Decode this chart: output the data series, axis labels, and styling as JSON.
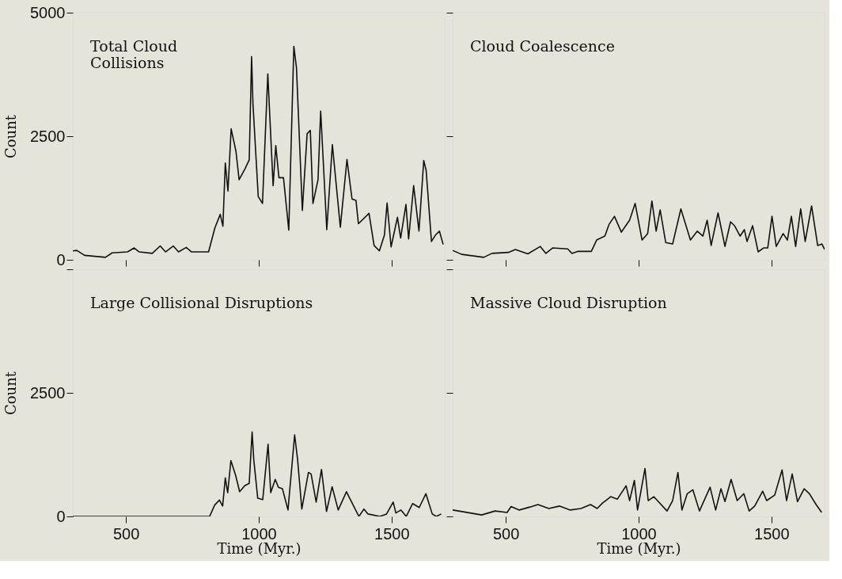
{
  "chart_data": [
    {
      "type": "line",
      "title": "Total Cloud\nCollisions",
      "ylabel": "Count",
      "xlim": [
        300,
        1700
      ],
      "ylim": [
        0,
        5000
      ],
      "xticks": [
        500,
        1000,
        1500
      ],
      "yticks": [
        0,
        2500,
        5000
      ],
      "tick_labels": "y",
      "x": [
        300,
        315,
        344,
        423,
        448,
        506,
        531,
        550,
        599,
        629,
        649,
        678,
        698,
        727,
        747,
        811,
        835,
        855,
        865,
        874,
        884,
        896,
        914,
        926,
        949,
        964,
        973,
        978,
        998,
        1014,
        1034,
        1054,
        1064,
        1076,
        1093,
        1113,
        1132,
        1142,
        1164,
        1182,
        1194,
        1204,
        1223,
        1233,
        1256,
        1277,
        1307,
        1332,
        1351,
        1366,
        1375,
        1415,
        1434,
        1454,
        1473,
        1483,
        1498,
        1522,
        1534,
        1554,
        1564,
        1583,
        1603,
        1621,
        1630,
        1650,
        1665,
        1680,
        1694
      ],
      "series": [
        {
          "color": "#111111",
          "values": [
            180,
            190,
            90,
            50,
            140,
            160,
            240,
            160,
            130,
            280,
            160,
            280,
            160,
            250,
            160,
            160,
            650,
            920,
            680,
            1960,
            1390,
            2650,
            2200,
            1620,
            1850,
            2020,
            4110,
            3170,
            1280,
            1140,
            3760,
            1500,
            2310,
            1660,
            1660,
            600,
            4320,
            3880,
            1000,
            2550,
            2620,
            1140,
            1620,
            3010,
            610,
            2330,
            660,
            2030,
            1230,
            1200,
            730,
            940,
            290,
            180,
            500,
            1150,
            260,
            860,
            440,
            1120,
            420,
            1500,
            580,
            2010,
            1810,
            370,
            500,
            580,
            310
          ]
        }
      ]
    },
    {
      "type": "line",
      "title": "Cloud Coalescence",
      "xlim": [
        300,
        1700
      ],
      "ylim": [
        0,
        5000
      ],
      "xticks": [
        500,
        1000,
        1500
      ],
      "yticks": [
        0,
        2500,
        5000
      ],
      "tick_labels": false,
      "x": [
        300,
        334,
        417,
        448,
        510,
        536,
        583,
        630,
        651,
        676,
        733,
        749,
        770,
        822,
        842,
        873,
        889,
        909,
        935,
        966,
        987,
        1013,
        1034,
        1050,
        1066,
        1081,
        1102,
        1128,
        1159,
        1195,
        1221,
        1242,
        1258,
        1273,
        1299,
        1325,
        1346,
        1361,
        1382,
        1398,
        1408,
        1429,
        1450,
        1470,
        1486,
        1502,
        1518,
        1544,
        1560,
        1575,
        1591,
        1610,
        1627,
        1651,
        1674,
        1690,
        1700
      ],
      "series": [
        {
          "color": "#111111",
          "values": [
            190,
            110,
            50,
            130,
            150,
            210,
            120,
            270,
            130,
            240,
            220,
            130,
            170,
            170,
            400,
            480,
            720,
            880,
            560,
            800,
            1140,
            400,
            530,
            1190,
            580,
            1010,
            350,
            320,
            1030,
            400,
            580,
            480,
            800,
            290,
            950,
            270,
            770,
            690,
            480,
            610,
            370,
            690,
            160,
            240,
            240,
            880,
            270,
            530,
            400,
            880,
            270,
            1030,
            370,
            1090,
            290,
            320,
            210
          ]
        }
      ]
    },
    {
      "type": "line",
      "title": "Large Collisional Disruptions",
      "xlabel": "Time (Myr.)",
      "ylabel": "Count",
      "xlim": [
        300,
        1700
      ],
      "ylim": [
        0,
        5000
      ],
      "xticks": [
        500,
        1000,
        1500
      ],
      "yticks": [
        0,
        2500,
        {
          "value": 5000,
          "label": null
        }
      ],
      "x": [
        300,
        785,
        815,
        834,
        852,
        864,
        874,
        883,
        895,
        913,
        928,
        947,
        964,
        975,
        981,
        996,
        1015,
        1035,
        1045,
        1062,
        1074,
        1089,
        1110,
        1135,
        1146,
        1162,
        1187,
        1197,
        1216,
        1236,
        1255,
        1276,
        1299,
        1330,
        1357,
        1377,
        1396,
        1411,
        1456,
        1481,
        1506,
        1516,
        1535,
        1555,
        1579,
        1604,
        1629,
        1653,
        1668,
        1687
      ],
      "series": [
        {
          "color": "#111111",
          "values": [
            0,
            0,
            0,
            230,
            330,
            210,
            780,
            480,
            1130,
            830,
            500,
            620,
            670,
            1710,
            1160,
            370,
            340,
            1460,
            480,
            750,
            590,
            560,
            130,
            1650,
            1160,
            150,
            890,
            860,
            290,
            950,
            100,
            600,
            130,
            500,
            210,
            0,
            150,
            50,
            0,
            50,
            290,
            70,
            130,
            0,
            260,
            180,
            460,
            50,
            0,
            50
          ]
        }
      ]
    },
    {
      "type": "line",
      "title": "Massive Cloud Disruption",
      "xlabel": "Time (Myr.)",
      "xlim": [
        300,
        1700
      ],
      "ylim": [
        0,
        5000
      ],
      "xticks": [
        500,
        1000,
        1500
      ],
      "yticks": [
        0,
        2500,
        5000
      ],
      "tick_labels": "x",
      "x": [
        300,
        409,
        460,
        505,
        520,
        551,
        591,
        621,
        662,
        703,
        743,
        783,
        819,
        844,
        864,
        895,
        920,
        953,
        966,
        984,
        996,
        1024,
        1036,
        1057,
        1107,
        1128,
        1148,
        1163,
        1183,
        1204,
        1229,
        1269,
        1290,
        1310,
        1325,
        1348,
        1371,
        1396,
        1416,
        1437,
        1467,
        1482,
        1512,
        1540,
        1557,
        1578,
        1598,
        1623,
        1643,
        1668,
        1689
      ],
      "series": [
        {
          "color": "#111111",
          "values": [
            130,
            30,
            110,
            80,
            200,
            130,
            190,
            240,
            160,
            210,
            130,
            160,
            240,
            160,
            270,
            400,
            350,
            620,
            320,
            730,
            130,
            970,
            320,
            400,
            110,
            320,
            890,
            130,
            460,
            540,
            110,
            590,
            130,
            560,
            300,
            750,
            320,
            460,
            110,
            210,
            510,
            320,
            430,
            940,
            320,
            860,
            300,
            560,
            460,
            240,
            80
          ]
        }
      ]
    }
  ]
}
